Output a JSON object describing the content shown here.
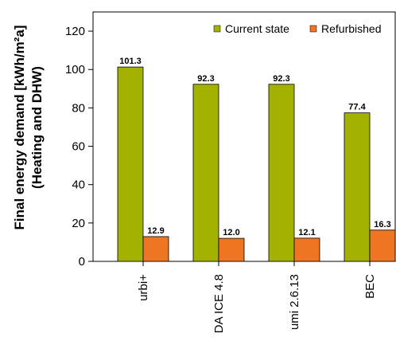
{
  "chart_data": {
    "type": "bar",
    "ylabel_lines": [
      "Final energy demand [kWh/m²a]",
      "(Heating and DHW)"
    ],
    "xlabel": "",
    "ylim": [
      0,
      130
    ],
    "yticks": [
      0,
      20,
      40,
      60,
      80,
      100,
      120
    ],
    "categories": [
      "urbi+",
      "DA ICE 4.8",
      "umi 2.6.13",
      "BEC"
    ],
    "series": [
      {
        "name": "Current state",
        "values": [
          101.3,
          92.3,
          92.3,
          77.4
        ],
        "labels": [
          "101.3",
          "92.3",
          "92.3",
          "77.4"
        ],
        "color": "#a3b200"
      },
      {
        "name": "Refurbished",
        "values": [
          12.9,
          12.0,
          12.1,
          16.3
        ],
        "labels": [
          "12.9",
          "12.0",
          "12.1",
          "16.3"
        ],
        "color": "#ee7623"
      }
    ],
    "grid": false,
    "legend_position": "top-right"
  }
}
